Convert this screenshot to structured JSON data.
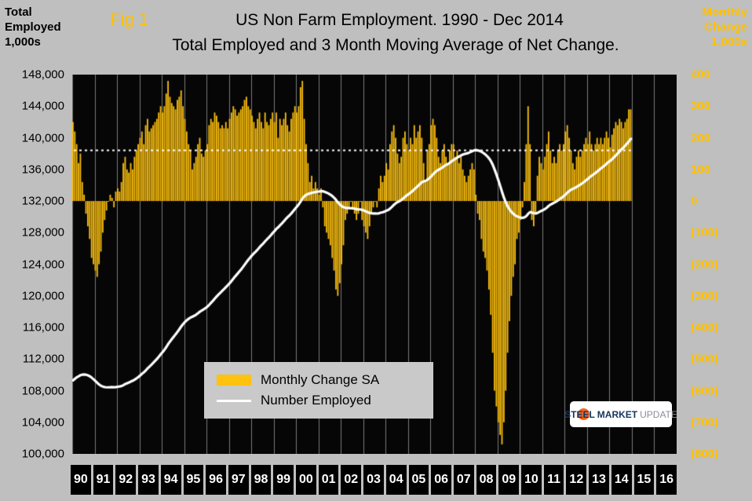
{
  "header": {
    "fig_label": "Fig 1",
    "title_line1": "US Non Farm Employment. 1990 - Dec  2014",
    "title_line2": "Total Employed and 3 Month Moving Average of Net Change.",
    "left_axis_title_lines": [
      "Total",
      "Employed",
      "1,000s"
    ],
    "right_axis_title_lines": [
      "Monthly",
      "Change",
      "1,000s"
    ]
  },
  "legend": {
    "items": [
      {
        "label": "Monthly Change SA",
        "swatch": "bar",
        "color": "#FFC20E"
      },
      {
        "label": "Number Employed",
        "swatch": "line",
        "color": "#FFFFFF"
      }
    ]
  },
  "logo": {
    "steel": "STEEL",
    "market": "MARKET",
    "update": "UPDATE"
  },
  "colors": {
    "background": "#BFBFBF",
    "plot_bg": "#060606",
    "bar": "#FFC20E",
    "line": "#FFFFFF",
    "gold_text": "#FFC000",
    "grid": "#7a7a7a",
    "dotted_line": "#FFFFFF",
    "year_box_bg": "#000000",
    "year_box_text": "#FFFFFF",
    "legend_bg": "#C9C9C9"
  },
  "chart_data": {
    "type": "combo",
    "title": "US Non Farm Employment. 1990 - Dec 2014. Total Employed and 3 Month Moving Average of Net Change.",
    "frequency": "monthly",
    "data_start": "1990-01",
    "data_end": "2014-12",
    "x_axis": {
      "start_year": 1990,
      "end_year": 2016,
      "year_labels": [
        "90",
        "91",
        "92",
        "93",
        "94",
        "95",
        "96",
        "97",
        "98",
        "99",
        "00",
        "01",
        "02",
        "03",
        "04",
        "05",
        "06",
        "07",
        "08",
        "09",
        "10",
        "11",
        "12",
        "13",
        "14",
        "15",
        "16"
      ]
    },
    "left_axis": {
      "label": "Total Employed 1,000s",
      "min": 100000,
      "max": 148000,
      "step": 4000,
      "tick_labels": [
        "148,000",
        "144,000",
        "140,000",
        "136,000",
        "132,000",
        "128,000",
        "124,000",
        "120,000",
        "116,000",
        "112,000",
        "108,000",
        "104,000",
        "100,000"
      ]
    },
    "right_axis": {
      "label": "Monthly Change 1,000s",
      "min": -800,
      "max": 400,
      "step": 100,
      "tick_labels": [
        "400",
        "300",
        "200",
        "100",
        "0",
        "(100)",
        "(200)",
        "(300)",
        "(400)",
        "(500)",
        "(600)",
        "(700)",
        "(800)"
      ]
    },
    "zero_change_employed_level": 132000,
    "employed_units_per_change_unit": 40,
    "reference_line_employed": 138400,
    "gridlines": "vertical-yearly",
    "legend_position": "inside-bottom-left",
    "series": [
      {
        "name": "Monthly Change SA",
        "type": "bar",
        "color": "#FFC20E",
        "axis": "right",
        "values": [
          250,
          220,
          180,
          120,
          150,
          60,
          20,
          -40,
          -80,
          -120,
          -180,
          -200,
          -220,
          -240,
          -200,
          -160,
          -100,
          -60,
          -30,
          0,
          20,
          10,
          -20,
          30,
          40,
          30,
          60,
          120,
          140,
          100,
          90,
          120,
          100,
          140,
          160,
          180,
          200,
          220,
          180,
          240,
          260,
          220,
          230,
          240,
          250,
          260,
          280,
          300,
          280,
          300,
          340,
          380,
          330,
          310,
          300,
          290,
          320,
          330,
          350,
          300,
          260,
          220,
          180,
          160,
          100,
          120,
          140,
          180,
          200,
          150,
          140,
          160,
          180,
          240,
          260,
          250,
          280,
          270,
          250,
          230,
          240,
          230,
          250,
          230,
          260,
          280,
          300,
          290,
          270,
          280,
          290,
          300,
          320,
          330,
          300,
          290,
          270,
          250,
          230,
          260,
          280,
          250,
          230,
          280,
          250,
          240,
          260,
          280,
          250,
          280,
          200,
          260,
          240,
          260,
          280,
          240,
          220,
          260,
          280,
          300,
          280,
          300,
          360,
          380,
          260,
          180,
          120,
          60,
          80,
          40,
          60,
          40,
          20,
          40,
          -20,
          -80,
          -100,
          -120,
          -140,
          -180,
          -220,
          -280,
          -300,
          -260,
          -200,
          -140,
          -60,
          -40,
          -20,
          0,
          -20,
          -40,
          -60,
          -40,
          0,
          -60,
          -80,
          -100,
          -120,
          -80,
          -40,
          -20,
          0,
          -20,
          40,
          80,
          60,
          80,
          120,
          100,
          180,
          220,
          240,
          200,
          150,
          120,
          140,
          200,
          220,
          180,
          160,
          200,
          180,
          240,
          200,
          220,
          240,
          200,
          120,
          60,
          160,
          180,
          240,
          260,
          240,
          200,
          140,
          120,
          160,
          180,
          140,
          120,
          160,
          180,
          180,
          140,
          160,
          120,
          140,
          100,
          80,
          60,
          80,
          100,
          120,
          100,
          20,
          -40,
          -60,
          -120,
          -160,
          -180,
          -220,
          -280,
          -360,
          -480,
          -600,
          -650,
          -700,
          -740,
          -770,
          -700,
          -600,
          -480,
          -380,
          -300,
          -240,
          -200,
          -120,
          -100,
          -60,
          -20,
          60,
          180,
          300,
          180,
          -60,
          -80,
          -40,
          80,
          140,
          120,
          100,
          140,
          180,
          220,
          160,
          120,
          140,
          120,
          160,
          180,
          160,
          180,
          220,
          240,
          200,
          160,
          120,
          100,
          140,
          160,
          140,
          160,
          180,
          200,
          180,
          220,
          180,
          160,
          180,
          200,
          180,
          200,
          180,
          200,
          220,
          200,
          170,
          210,
          230,
          250,
          240,
          260,
          250,
          230,
          250,
          260,
          290,
          290
        ]
      },
      {
        "name": "Number Employed",
        "type": "line",
        "color": "#FFFFFF",
        "axis": "left",
        "start_value": 109300,
        "derivation": "cumulative_sum_of_monthly_change_values",
        "approx_anchor_points": {
          "1990-01": 109300,
          "1991-07": 108670,
          "2001-03": 133480,
          "2003-08": 130660,
          "2008-01": 138690,
          "2010-02": 130130,
          "2014-12": 140120
        }
      }
    ]
  }
}
